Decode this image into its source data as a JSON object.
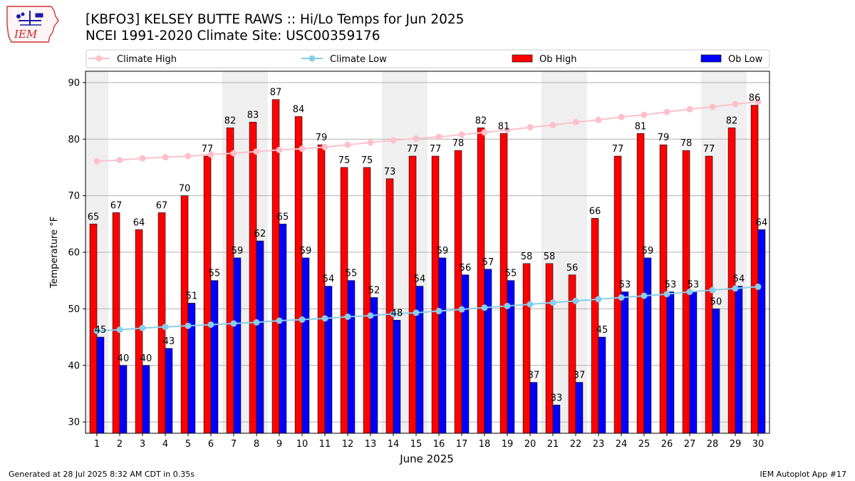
{
  "header": {
    "title_line1": "[KBFO3] KELSEY BUTTE RAWS :: Hi/Lo Temps for Jun 2025",
    "title_line2": "NCEI 1991-2020 Climate Site: USC00359176",
    "logo_text": "IEM"
  },
  "footer": {
    "generated": "Generated at 28 Jul 2025 8:32 AM CDT in 0.35s",
    "app": "IEM Autoplot App #17"
  },
  "colors": {
    "ob_high": "#ff0000",
    "ob_low": "#0000ff",
    "climate_high": "#ffc0cb",
    "climate_low": "#87ceeb",
    "weekend_shade": "#efefef",
    "grid": "#b0b0b0"
  },
  "chart_data": {
    "type": "bar",
    "xlabel": "June 2025",
    "ylabel": "Temperature °F",
    "ylim": [
      28,
      92
    ],
    "yticks": [
      30,
      40,
      50,
      60,
      70,
      80,
      90
    ],
    "grid": "horizontal",
    "legend": "top",
    "categories": [
      "1",
      "2",
      "3",
      "4",
      "5",
      "6",
      "7",
      "8",
      "9",
      "10",
      "11",
      "12",
      "13",
      "14",
      "15",
      "16",
      "17",
      "18",
      "19",
      "20",
      "21",
      "22",
      "23",
      "24",
      "25",
      "26",
      "27",
      "28",
      "29",
      "30"
    ],
    "shaded_days": [
      1,
      7,
      8,
      14,
      15,
      21,
      22,
      28,
      29
    ],
    "series": [
      {
        "name": "Ob High",
        "kind": "bar",
        "values": [
          65,
          67,
          64,
          67,
          70,
          77,
          82,
          83,
          87,
          84,
          79,
          75,
          75,
          73,
          77,
          77,
          78,
          82,
          81,
          58,
          58,
          56,
          66,
          77,
          81,
          79,
          78,
          77,
          82,
          86
        ]
      },
      {
        "name": "Ob Low",
        "kind": "bar",
        "values": [
          45,
          40,
          40,
          43,
          51,
          55,
          59,
          62,
          65,
          59,
          54,
          55,
          52,
          48,
          54,
          59,
          56,
          57,
          55,
          37,
          33,
          37,
          45,
          53,
          59,
          53,
          53,
          50,
          54,
          64
        ]
      },
      {
        "name": "Climate High",
        "kind": "line",
        "values": [
          76.1,
          76.3,
          76.6,
          76.8,
          77.0,
          77.3,
          77.5,
          77.8,
          78.1,
          78.3,
          78.6,
          79.0,
          79.4,
          79.8,
          80.1,
          80.4,
          80.8,
          81.2,
          81.6,
          82.1,
          82.5,
          83.0,
          83.4,
          83.9,
          84.3,
          84.8,
          85.3,
          85.7,
          86.2,
          86.6
        ]
      },
      {
        "name": "Climate Low",
        "kind": "line",
        "values": [
          46.1,
          46.3,
          46.6,
          46.8,
          47.0,
          47.2,
          47.4,
          47.6,
          47.9,
          48.1,
          48.3,
          48.6,
          48.8,
          49.1,
          49.3,
          49.6,
          49.9,
          50.2,
          50.5,
          50.8,
          51.1,
          51.4,
          51.7,
          52.0,
          52.3,
          52.6,
          53.0,
          53.3,
          53.6,
          53.9
        ]
      }
    ]
  }
}
